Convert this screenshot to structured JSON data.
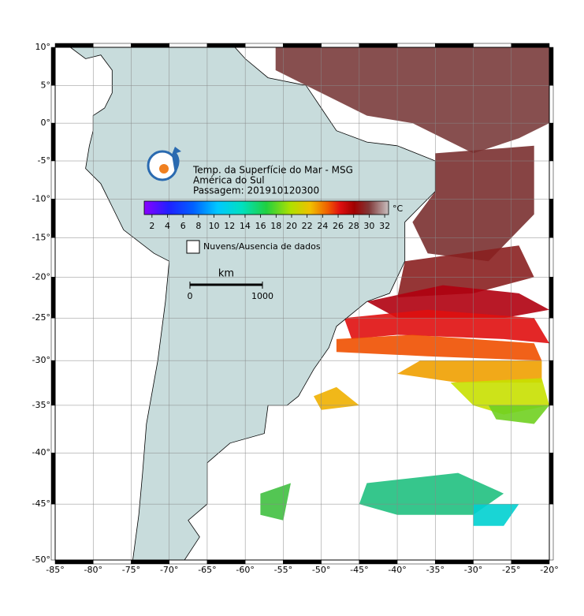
{
  "map": {
    "title_lines": [
      "Temp. da Superfície do Mar - MSG",
      "América do Sul",
      "Passagem: 201910120300"
    ],
    "colorbar": {
      "ticks": [
        2,
        4,
        6,
        8,
        10,
        12,
        14,
        16,
        18,
        20,
        22,
        24,
        26,
        28,
        30,
        32
      ],
      "range": [
        1,
        32.5
      ],
      "unit": "°C"
    },
    "legend": "Nuvens/Ausencia de dados",
    "scale_bar": {
      "unit": "km",
      "ticks": [
        0,
        1000
      ]
    },
    "lon_ticks": [
      {
        "value": -85,
        "label": "-85°"
      },
      {
        "value": -80,
        "label": "-80°"
      },
      {
        "value": -75,
        "label": "-75°"
      },
      {
        "value": -70,
        "label": "-70°"
      },
      {
        "value": -65,
        "label": "-65°"
      },
      {
        "value": -60,
        "label": "-60°"
      },
      {
        "value": -55,
        "label": "-55°"
      },
      {
        "value": -50,
        "label": "-50°"
      },
      {
        "value": -45,
        "label": "-45°"
      },
      {
        "value": -40,
        "label": "-40°"
      },
      {
        "value": -35,
        "label": "-35°"
      },
      {
        "value": -30,
        "label": "-30°"
      },
      {
        "value": -25,
        "label": "-25°"
      },
      {
        "value": -20,
        "label": "-20°"
      }
    ],
    "lat_ticks": [
      {
        "value": 10,
        "label": "10°"
      },
      {
        "value": 5,
        "label": "5°"
      },
      {
        "value": 0,
        "label": "0°"
      },
      {
        "value": -5,
        "label": "-5°"
      },
      {
        "value": -10,
        "label": "-10°"
      },
      {
        "value": -15,
        "label": "-15°"
      },
      {
        "value": -20,
        "label": "-20°"
      },
      {
        "value": -25,
        "label": "-25°"
      },
      {
        "value": -30,
        "label": "-30°"
      },
      {
        "value": -35,
        "label": "-35°"
      },
      {
        "value": -40,
        "label": "-40°"
      },
      {
        "value": -45,
        "label": "-45°"
      },
      {
        "value": -50,
        "label": "-50°"
      }
    ]
  }
}
